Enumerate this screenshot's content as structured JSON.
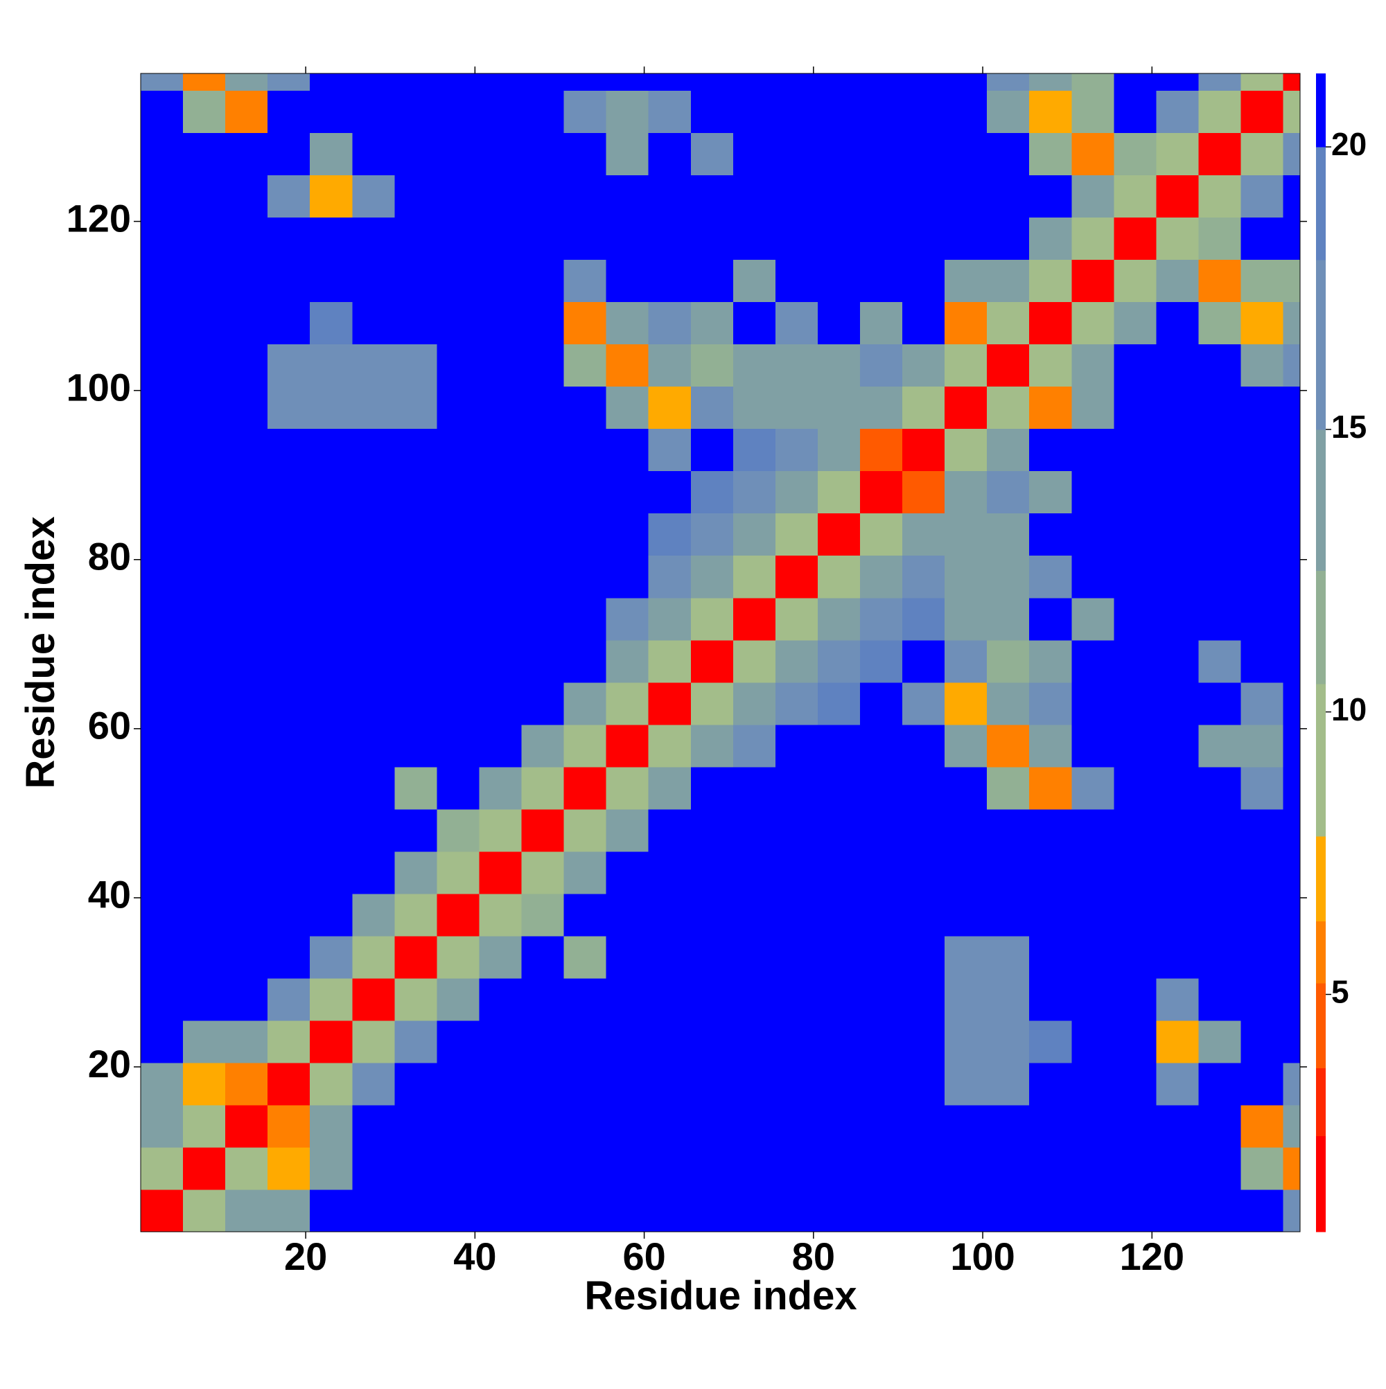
{
  "chart_data": {
    "type": "heatmap",
    "x_label": "Residue index",
    "y_label": "Residue index",
    "x_edges": [
      0.5,
      5.5,
      10.5,
      15.5,
      20.5,
      25.5,
      30.5,
      35.5,
      40.5,
      45.5,
      50.5,
      55.5,
      60.5,
      65.5,
      70.5,
      75.5,
      80.5,
      85.5,
      90.5,
      95.5,
      100.5,
      105.5,
      110.5,
      115.5,
      120.5,
      125.5,
      130.5,
      135.5,
      137.5
    ],
    "y_edges": [
      0.5,
      5.5,
      10.5,
      15.5,
      20.5,
      25.5,
      30.5,
      35.5,
      40.5,
      45.5,
      50.5,
      55.5,
      60.5,
      65.5,
      70.5,
      75.5,
      80.5,
      85.5,
      90.5,
      95.5,
      100.5,
      105.5,
      110.5,
      115.5,
      120.5,
      125.5,
      130.5,
      135.5,
      137.5
    ],
    "xlim": [
      0.5,
      137.5
    ],
    "ylim": [
      0.5,
      137.5
    ],
    "xticks": [
      20,
      40,
      60,
      80,
      100,
      120
    ],
    "yticks": [
      20,
      40,
      60,
      80,
      100,
      120
    ],
    "zlim": [
      0.8,
      21.3
    ],
    "zticks": [
      5,
      10,
      15,
      20
    ],
    "color_levels": [
      0.8,
      2.5,
      3.7,
      5.2,
      6.3,
      7.8,
      10.5,
      12.5,
      15,
      18,
      20,
      21.3
    ],
    "colors": [
      "#ff0000",
      "#ff2800",
      "#ff5a00",
      "#ff8000",
      "#ffaa00",
      "#a3bd8a",
      "#92b094",
      "#80a0a4",
      "#6f8fb8",
      "#5f82c0",
      "#0000ff"
    ],
    "z": [
      [
        2,
        9,
        13,
        15,
        21,
        21,
        21,
        21,
        21,
        21,
        21,
        21,
        21,
        21,
        21,
        21,
        21,
        21,
        21,
        21,
        21,
        21,
        21,
        21,
        21,
        21,
        21,
        16
      ],
      [
        9,
        2,
        9,
        7,
        15,
        21,
        21,
        21,
        21,
        21,
        21,
        21,
        21,
        21,
        21,
        21,
        21,
        21,
        21,
        21,
        21,
        21,
        21,
        21,
        21,
        21,
        12,
        6
      ],
      [
        13,
        9,
        2,
        6,
        13,
        21,
        21,
        21,
        21,
        21,
        21,
        21,
        21,
        21,
        21,
        21,
        21,
        21,
        21,
        21,
        21,
        21,
        21,
        21,
        21,
        21,
        6,
        13
      ],
      [
        15,
        7,
        6,
        2,
        9,
        17,
        21,
        21,
        21,
        21,
        21,
        21,
        21,
        21,
        21,
        21,
        21,
        21,
        21,
        17,
        18,
        21,
        21,
        21,
        17,
        21,
        21,
        17
      ],
      [
        21,
        15,
        13,
        9,
        2,
        9,
        17,
        21,
        21,
        21,
        21,
        21,
        21,
        21,
        21,
        21,
        21,
        21,
        21,
        16,
        17,
        19,
        21,
        21,
        7,
        13,
        21,
        21
      ],
      [
        21,
        21,
        21,
        17,
        9,
        2,
        9,
        15,
        21,
        21,
        21,
        21,
        21,
        21,
        21,
        21,
        21,
        21,
        21,
        16,
        17,
        21,
        21,
        21,
        18,
        21,
        21,
        21
      ],
      [
        21,
        21,
        21,
        21,
        17,
        9,
        2,
        9,
        15,
        21,
        11,
        21,
        21,
        21,
        21,
        21,
        21,
        21,
        21,
        18,
        16,
        21,
        21,
        21,
        21,
        21,
        21,
        21
      ],
      [
        21,
        21,
        21,
        21,
        21,
        15,
        9,
        2,
        9,
        12,
        21,
        21,
        21,
        21,
        21,
        21,
        21,
        21,
        21,
        21,
        21,
        21,
        21,
        21,
        21,
        21,
        21,
        21
      ],
      [
        21,
        21,
        21,
        21,
        21,
        21,
        15,
        9,
        2,
        9,
        13,
        21,
        21,
        21,
        21,
        21,
        21,
        21,
        21,
        21,
        21,
        21,
        21,
        21,
        21,
        21,
        21,
        21
      ],
      [
        21,
        21,
        21,
        21,
        21,
        21,
        21,
        12,
        9,
        2,
        9,
        14,
        21,
        21,
        21,
        21,
        21,
        21,
        21,
        21,
        21,
        21,
        21,
        21,
        21,
        21,
        21,
        21
      ],
      [
        21,
        21,
        21,
        21,
        21,
        21,
        11,
        21,
        13,
        9,
        2,
        9,
        14,
        21,
        21,
        21,
        21,
        21,
        21,
        21,
        12,
        6,
        16,
        21,
        21,
        21,
        16,
        21
      ],
      [
        21,
        21,
        21,
        21,
        21,
        21,
        21,
        21,
        21,
        14,
        9,
        2,
        9,
        14,
        17,
        21,
        21,
        21,
        21,
        13,
        6,
        13,
        21,
        21,
        21,
        15,
        15,
        21
      ],
      [
        21,
        21,
        21,
        21,
        21,
        21,
        21,
        21,
        21,
        21,
        14,
        9,
        2,
        9,
        14,
        17,
        19,
        21,
        17,
        7,
        13,
        16,
        21,
        21,
        21,
        21,
        16,
        21
      ],
      [
        21,
        21,
        21,
        21,
        21,
        21,
        21,
        21,
        21,
        21,
        21,
        14,
        9,
        2,
        9,
        14,
        17,
        19,
        21,
        16,
        12,
        14,
        21,
        21,
        21,
        16,
        21,
        21
      ],
      [
        21,
        21,
        21,
        21,
        21,
        21,
        21,
        21,
        21,
        21,
        21,
        17,
        14,
        9,
        2,
        9,
        14,
        17,
        19,
        13,
        14,
        21,
        15,
        21,
        21,
        21,
        21,
        21
      ],
      [
        21,
        21,
        21,
        21,
        21,
        21,
        21,
        21,
        21,
        21,
        21,
        21,
        17,
        14,
        9,
        2,
        9,
        14,
        17,
        15,
        15,
        16,
        21,
        21,
        21,
        21,
        21,
        21
      ],
      [
        21,
        21,
        21,
        21,
        21,
        21,
        21,
        21,
        21,
        21,
        21,
        21,
        19,
        17,
        14,
        9,
        2,
        9,
        14,
        15,
        14,
        21,
        21,
        21,
        21,
        21,
        21,
        21
      ],
      [
        21,
        21,
        21,
        21,
        21,
        21,
        21,
        21,
        21,
        21,
        21,
        21,
        21,
        19,
        17,
        14,
        9,
        2,
        5,
        14,
        17,
        13,
        21,
        21,
        21,
        21,
        21,
        21
      ],
      [
        21,
        21,
        21,
        21,
        21,
        21,
        21,
        21,
        21,
        21,
        21,
        21,
        17,
        21,
        19,
        17,
        14,
        5,
        2,
        9,
        14,
        21,
        21,
        21,
        21,
        21,
        21,
        21
      ],
      [
        21,
        21,
        21,
        17,
        16,
        16,
        18,
        21,
        21,
        21,
        21,
        13,
        7,
        16,
        13,
        15,
        15,
        14,
        9,
        2,
        9,
        6,
        13,
        21,
        21,
        21,
        21,
        21
      ],
      [
        21,
        21,
        21,
        18,
        17,
        17,
        16,
        21,
        21,
        21,
        12,
        6,
        13,
        12,
        14,
        15,
        14,
        17,
        14,
        9,
        2,
        9,
        14,
        21,
        21,
        21,
        13,
        16
      ],
      [
        21,
        21,
        21,
        21,
        19,
        21,
        21,
        21,
        21,
        21,
        6,
        13,
        16,
        14,
        21,
        16,
        21,
        13,
        21,
        6,
        9,
        2,
        9,
        14,
        21,
        12,
        7,
        13
      ],
      [
        21,
        21,
        21,
        21,
        21,
        21,
        21,
        21,
        21,
        21,
        16,
        21,
        21,
        21,
        15,
        21,
        21,
        21,
        21,
        13,
        14,
        9,
        2,
        9,
        14,
        6,
        12,
        12
      ],
      [
        21,
        21,
        21,
        21,
        21,
        21,
        21,
        21,
        21,
        21,
        21,
        21,
        21,
        21,
        21,
        21,
        21,
        21,
        21,
        21,
        21,
        14,
        9,
        2,
        9,
        12,
        21,
        21
      ],
      [
        21,
        21,
        21,
        17,
        7,
        18,
        21,
        21,
        21,
        21,
        21,
        21,
        21,
        21,
        21,
        21,
        21,
        21,
        21,
        21,
        21,
        21,
        14,
        9,
        2,
        9,
        17,
        21
      ],
      [
        21,
        21,
        21,
        21,
        13,
        21,
        21,
        21,
        21,
        21,
        21,
        15,
        21,
        16,
        21,
        21,
        21,
        21,
        21,
        21,
        21,
        12,
        6,
        12,
        9,
        2,
        9,
        17
      ],
      [
        21,
        12,
        6,
        21,
        21,
        21,
        21,
        21,
        21,
        21,
        16,
        15,
        16,
        21,
        21,
        21,
        21,
        21,
        21,
        21,
        13,
        7,
        12,
        21,
        17,
        9,
        2,
        9
      ],
      [
        16,
        6,
        13,
        17,
        21,
        21,
        21,
        21,
        21,
        21,
        21,
        21,
        21,
        21,
        21,
        21,
        21,
        21,
        21,
        21,
        16,
        13,
        12,
        21,
        21,
        17,
        9,
        2
      ]
    ]
  }
}
